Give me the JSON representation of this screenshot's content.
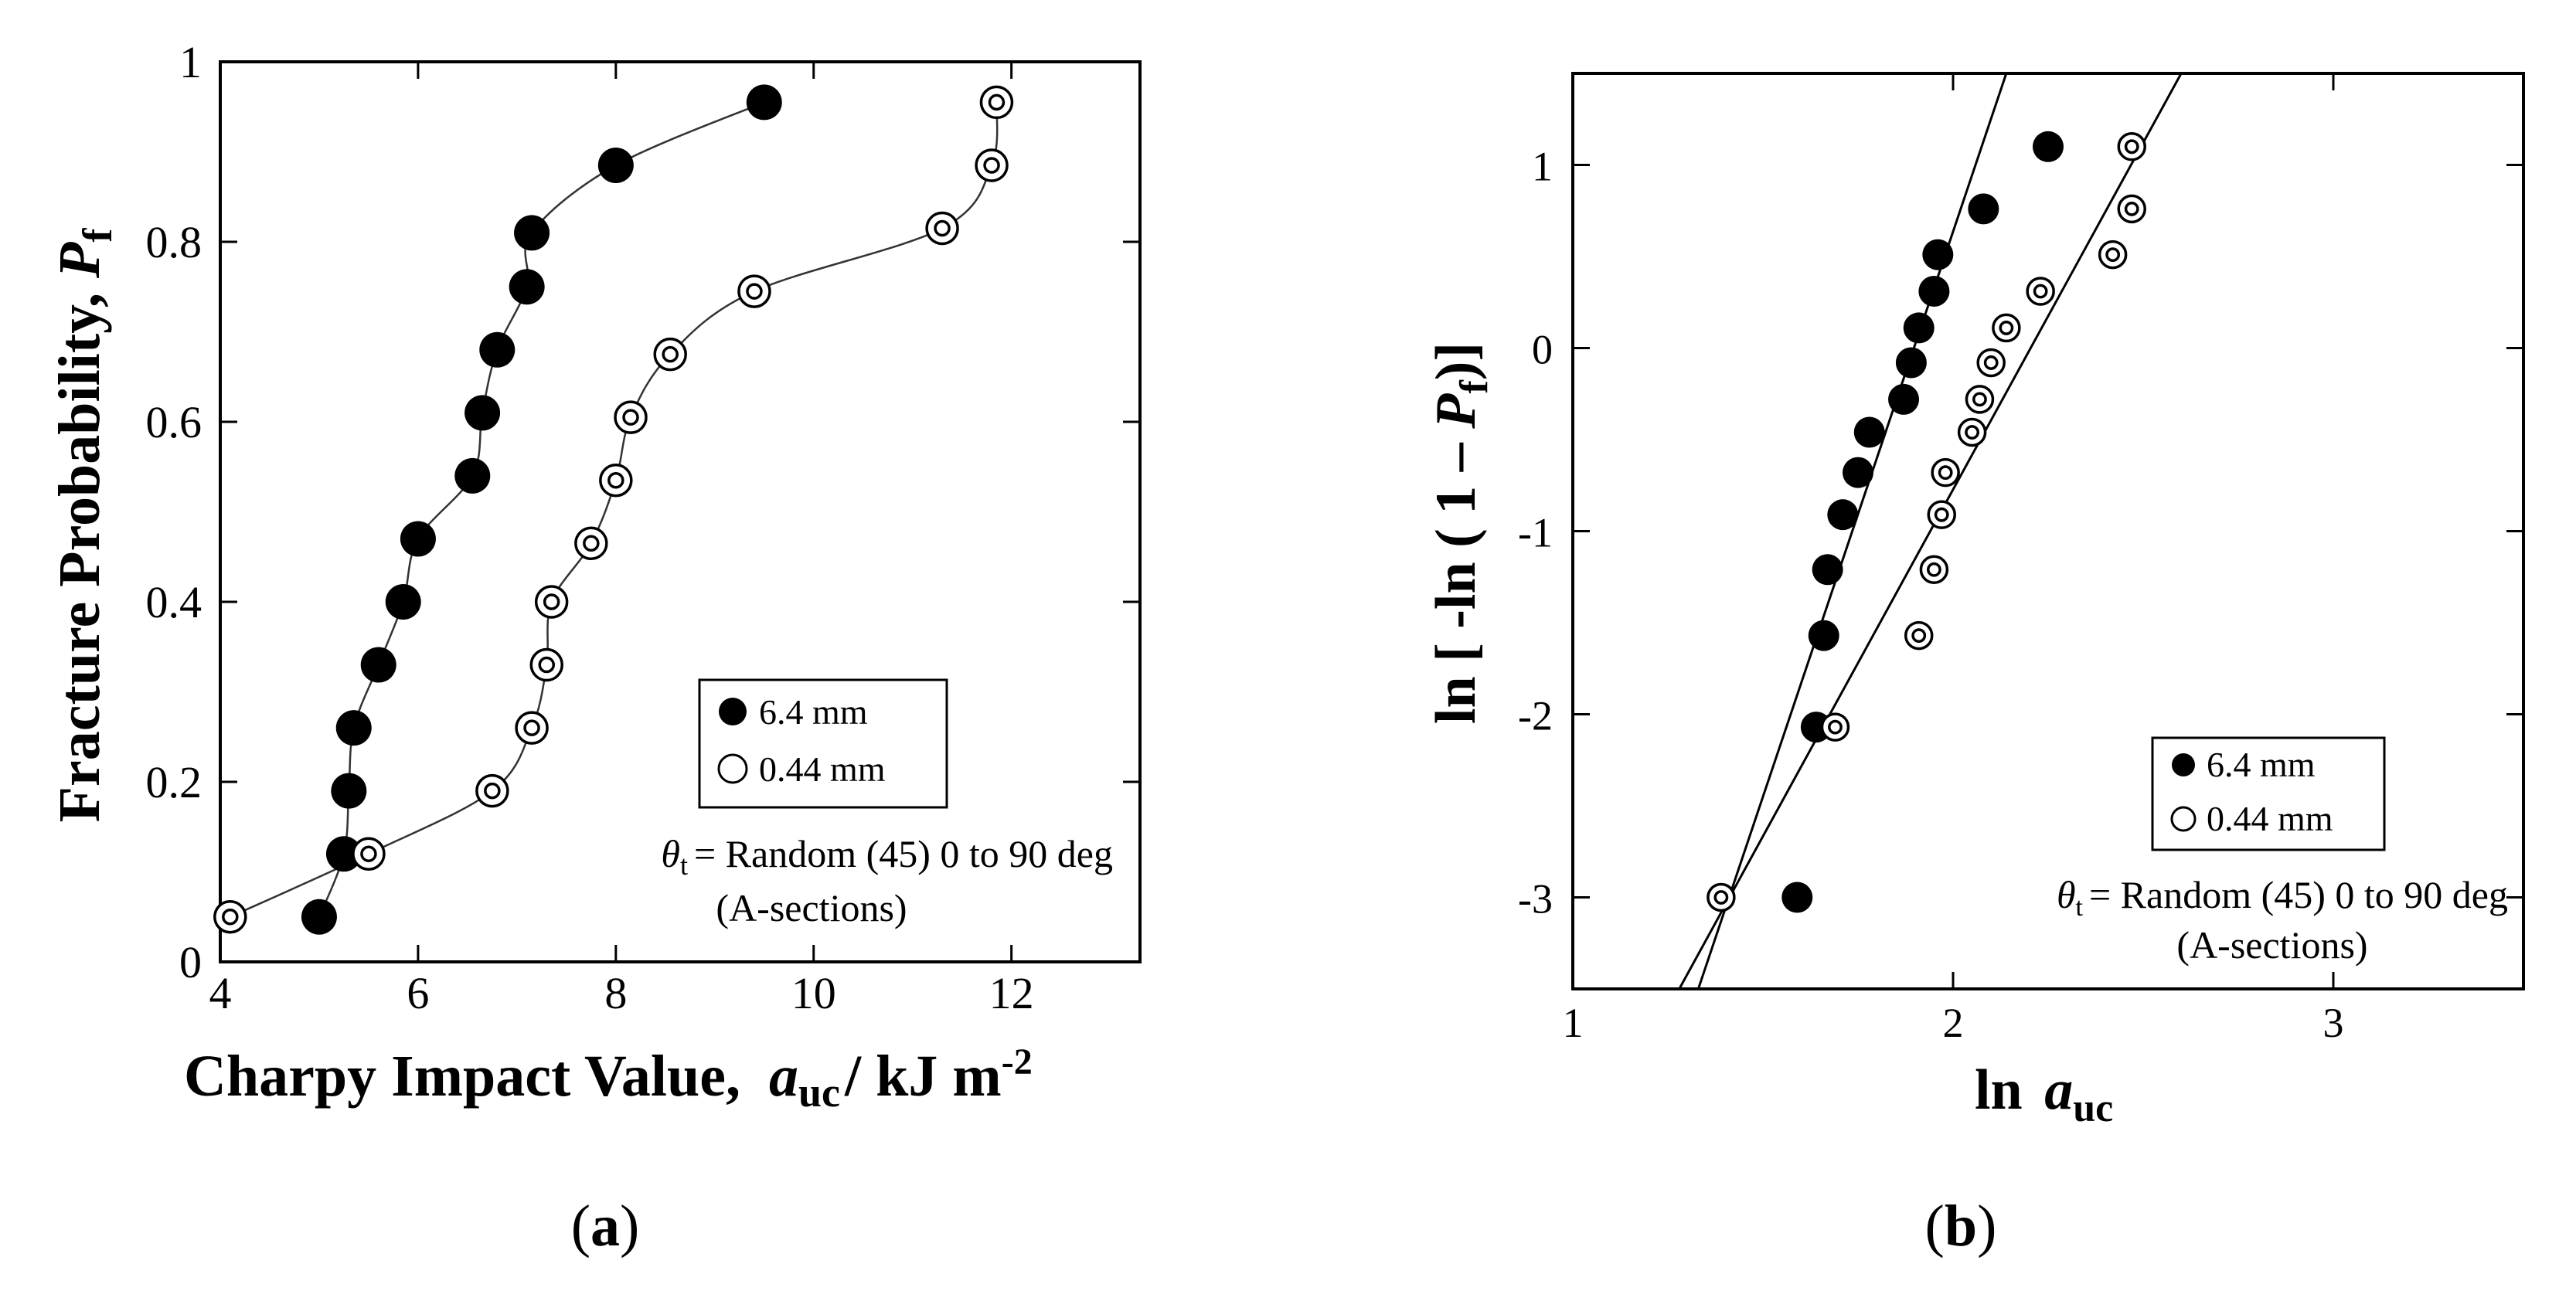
{
  "chart_data": [
    {
      "type": "scatter",
      "panel_label": "(a)",
      "panel_letter": "a",
      "title": "",
      "xlabel": "Charpy Impact Value,",
      "xlabel_symbol": "a",
      "xlabel_sub": "uc",
      "xlabel_unit": "/ kJ m",
      "xlabel_exp": "-2",
      "ylabel": "Fracture Probability,",
      "ylabel_symbol": "P",
      "ylabel_sub": "f",
      "xlim": [
        4,
        13.3
      ],
      "ylim": [
        0,
        1
      ],
      "xticks": [
        4,
        6,
        8,
        10,
        12
      ],
      "xtick_labels": [
        "4",
        "6",
        "8",
        "10",
        "12"
      ],
      "yticks": [
        0,
        0.2,
        0.4,
        0.6,
        0.8,
        1
      ],
      "ytick_labels": [
        "0",
        "0.2",
        "0.4",
        "0.6",
        "0.8",
        "1"
      ],
      "series": [
        {
          "name": "6.4 mm",
          "marker": "filled",
          "points": [
            [
              5.0,
              0.05
            ],
            [
              5.25,
              0.12
            ],
            [
              5.3,
              0.19
            ],
            [
              5.35,
              0.26
            ],
            [
              5.6,
              0.33
            ],
            [
              5.85,
              0.4
            ],
            [
              6.0,
              0.47
            ],
            [
              6.55,
              0.54
            ],
            [
              6.65,
              0.61
            ],
            [
              6.8,
              0.68
            ],
            [
              7.1,
              0.75
            ],
            [
              7.15,
              0.81
            ],
            [
              8.0,
              0.885
            ],
            [
              9.5,
              0.955
            ]
          ]
        },
        {
          "name": "0.44 mm",
          "marker": "bullseye",
          "points": [
            [
              4.1,
              0.05
            ],
            [
              5.5,
              0.12
            ],
            [
              6.75,
              0.19
            ],
            [
              7.15,
              0.26
            ],
            [
              7.3,
              0.33
            ],
            [
              7.35,
              0.4
            ],
            [
              7.75,
              0.465
            ],
            [
              8.0,
              0.535
            ],
            [
              8.15,
              0.605
            ],
            [
              8.55,
              0.675
            ],
            [
              9.4,
              0.745
            ],
            [
              11.3,
              0.815
            ],
            [
              11.8,
              0.885
            ],
            [
              11.85,
              0.955
            ]
          ]
        }
      ],
      "legend": {
        "location": "lower-right",
        "entries": [
          "6.4 mm",
          "0.44 mm"
        ]
      },
      "annotation_symbol": "θ",
      "annotation_sub": "t",
      "annotation_text": "= Random (45) 0 to 90 deg",
      "annotation_line2": "(A-sections)"
    },
    {
      "type": "scatter",
      "panel_label": "(b)",
      "panel_letter": "b",
      "title": "",
      "xlabel": "ln",
      "xlabel_symbol": "a",
      "xlabel_sub": "uc",
      "ylabel": "ln [ -ln ( 1 –",
      "ylabel_symbol": "P",
      "ylabel_sub": "f",
      "ylabel_end": ")]",
      "xlim": [
        1,
        3.5
      ],
      "ylim": [
        -3.5,
        1.5
      ],
      "xticks": [
        1,
        2,
        3
      ],
      "xtick_labels": [
        "1",
        "2",
        "3"
      ],
      "yticks": [
        -3,
        -2,
        -1,
        0,
        1
      ],
      "ytick_labels": [
        "-3",
        "-2",
        "-1",
        "0",
        "1"
      ],
      "series": [
        {
          "name": "6.4 mm",
          "marker": "filled",
          "points": [
            [
              1.59,
              -3.0
            ],
            [
              1.64,
              -2.07
            ],
            [
              1.66,
              -1.57
            ],
            [
              1.67,
              -1.21
            ],
            [
              1.71,
              -0.91
            ],
            [
              1.75,
              -0.68
            ],
            [
              1.78,
              -0.46
            ],
            [
              1.87,
              -0.28
            ],
            [
              1.89,
              -0.08
            ],
            [
              1.91,
              0.11
            ],
            [
              1.95,
              0.31
            ],
            [
              1.96,
              0.51
            ],
            [
              2.08,
              0.76
            ],
            [
              2.25,
              1.1
            ]
          ]
        },
        {
          "name": "0.44 mm",
          "marker": "bullseye",
          "points": [
            [
              1.39,
              -3.0
            ],
            [
              1.69,
              -2.07
            ],
            [
              1.91,
              -1.57
            ],
            [
              1.95,
              -1.21
            ],
            [
              1.97,
              -0.91
            ],
            [
              1.98,
              -0.68
            ],
            [
              2.05,
              -0.46
            ],
            [
              2.07,
              -0.28
            ],
            [
              2.1,
              -0.08
            ],
            [
              2.14,
              0.11
            ],
            [
              2.23,
              0.31
            ],
            [
              2.42,
              0.51
            ],
            [
              2.47,
              0.76
            ],
            [
              2.47,
              1.1
            ]
          ]
        }
      ],
      "fit_lines": [
        {
          "name": "6.4 mm fit",
          "x": [
            1.33,
            2.14
          ],
          "y": [
            -3.5,
            1.5
          ]
        },
        {
          "name": "0.44 mm fit",
          "x": [
            1.28,
            2.6
          ],
          "y": [
            -3.5,
            1.5
          ]
        }
      ],
      "legend": {
        "location": "lower-right",
        "entries": [
          "6.4 mm",
          "0.44 mm"
        ]
      },
      "annotation_symbol": "θ",
      "annotation_sub": "t",
      "annotation_text": "= Random (45) 0 to 90 deg",
      "annotation_line2": "(A-sections)"
    }
  ]
}
